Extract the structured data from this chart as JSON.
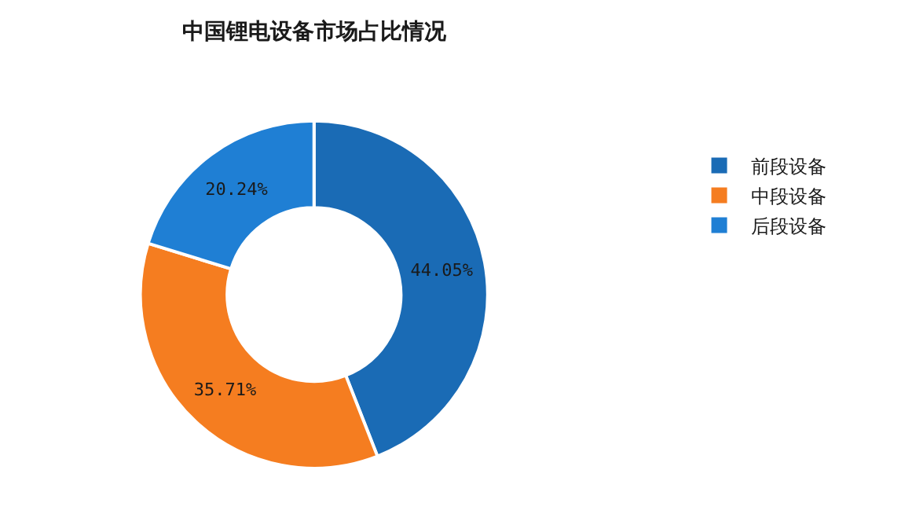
{
  "chart_data": {
    "type": "donut",
    "title": "中国锂电设备市场占比情况",
    "categories": [
      "前段设备",
      "中段设备",
      "后段设备"
    ],
    "values": [
      44.05,
      35.71,
      20.24
    ],
    "value_labels": [
      "44.05%",
      "35.71%",
      "20.24%"
    ],
    "colors": [
      "#1a6bb5",
      "#f57d20",
      "#1f7fd4"
    ],
    "legend": "right"
  }
}
